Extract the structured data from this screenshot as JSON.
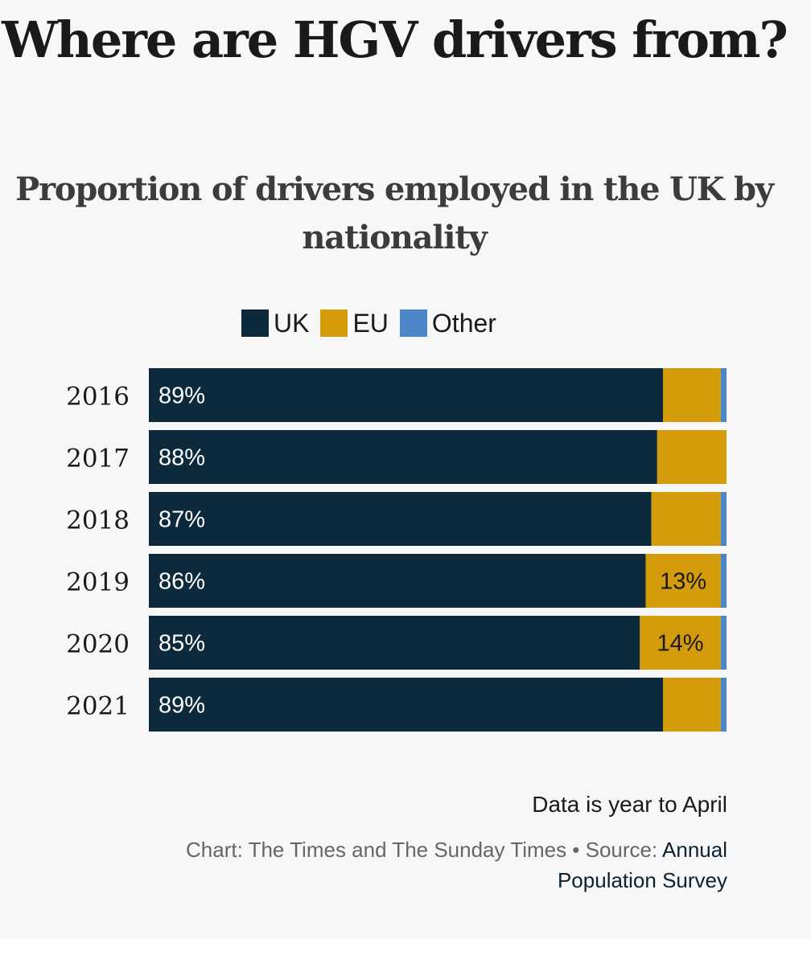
{
  "colors": {
    "uk": "#0d2a3d",
    "eu": "#d49b0b",
    "other": "#4a86c8",
    "background": "#f7f7f7",
    "bar_label_light": "#ffffff",
    "bar_label_dark": "#1a1a1a"
  },
  "chart_data": {
    "type": "bar",
    "orientation": "horizontal",
    "stacked": true,
    "normalized": true,
    "title": "Where are HGV drivers from?",
    "subtitle": "Proportion of drivers employed in the UK by nationality",
    "categories": [
      "2016",
      "2017",
      "2018",
      "2019",
      "2020",
      "2021"
    ],
    "series": [
      {
        "name": "UK",
        "values": [
          89,
          88,
          87,
          86,
          85,
          89
        ]
      },
      {
        "name": "EU",
        "values": [
          10,
          12,
          12,
          13,
          14,
          10
        ]
      },
      {
        "name": "Other",
        "values": [
          1,
          0,
          1,
          1,
          1,
          1
        ]
      }
    ],
    "data_labels": [
      {
        "category": "2016",
        "series": "UK",
        "text": "89%"
      },
      {
        "category": "2017",
        "series": "UK",
        "text": "88%"
      },
      {
        "category": "2018",
        "series": "UK",
        "text": "87%"
      },
      {
        "category": "2019",
        "series": "UK",
        "text": "86%"
      },
      {
        "category": "2019",
        "series": "EU",
        "text": "13%"
      },
      {
        "category": "2020",
        "series": "UK",
        "text": "85%"
      },
      {
        "category": "2020",
        "series": "EU",
        "text": "14%"
      },
      {
        "category": "2021",
        "series": "UK",
        "text": "89%"
      }
    ],
    "xlim": [
      0,
      100
    ],
    "grid": false,
    "axes_visible": false,
    "legend_position": "top"
  },
  "legend": {
    "items": [
      {
        "label": "UK"
      },
      {
        "label": "EU"
      },
      {
        "label": "Other"
      }
    ]
  },
  "footer": {
    "note": "Data is year to April",
    "credit_prefix": "Chart: The Times and The Sunday Times • Source: ",
    "source_link": "Annual Population Survey"
  }
}
